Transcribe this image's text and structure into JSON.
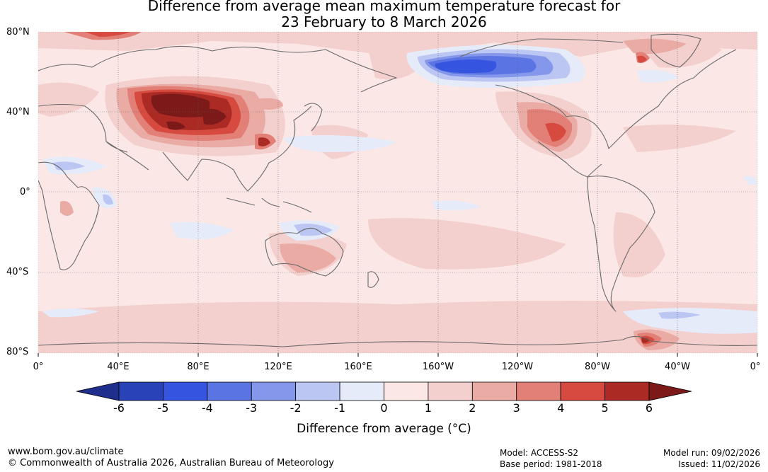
{
  "title": {
    "line1": "Difference from average mean maximum temperature forecast for",
    "line2": "23 February to 8 March 2026"
  },
  "map": {
    "lat_labels": [
      "80°N",
      "40°N",
      "0°",
      "40°S",
      "80°S"
    ],
    "lon_labels": [
      "0°",
      "40°E",
      "80°E",
      "120°E",
      "160°E",
      "160°W",
      "120°W",
      "80°W",
      "40°W",
      "0°"
    ],
    "anomaly_regions": [
      {
        "region": "Central Asia / Mongolia",
        "anomaly_c": 6
      },
      {
        "region": "Alaska / NE Pacific",
        "anomaly_c": -4
      },
      {
        "region": "Southern United States / Mexico",
        "anomaly_c": 4
      },
      {
        "region": "Eastern China",
        "anomaly_c": 4
      },
      {
        "region": "Arctic north of Europe",
        "anomaly_c": 4
      },
      {
        "region": "Greenland",
        "anomaly_c": 4
      },
      {
        "region": "Antarctic Peninsula",
        "anomaly_c": 5
      },
      {
        "region": "Northern Australia",
        "anomaly_c": -2
      },
      {
        "region": "Southern Australia",
        "anomaly_c": 2
      }
    ]
  },
  "colorbar": {
    "ticks": [
      "-6",
      "-5",
      "-4",
      "-3",
      "-2",
      "-1",
      "0",
      "1",
      "2",
      "3",
      "4",
      "5",
      "6"
    ],
    "colors": [
      "#1f2e8c",
      "#2a42b8",
      "#3554e0",
      "#5b74e3",
      "#8597ea",
      "#bcc6f2",
      "#e6ebfa",
      "#fbe8e6",
      "#f3d0cd",
      "#eaaba5",
      "#e28078",
      "#d64a3f",
      "#ab2a24",
      "#7b1a18"
    ],
    "label": "Difference from average (°C)"
  },
  "footer": {
    "website": "www.bom.gov.au/climate",
    "copyright": "© Commonwealth of Australia 2026, Australian Bureau of Meteorology",
    "model": "Model: ACCESS-S2",
    "base_period": "Base period: 1981-2018",
    "model_run": "Model run: 09/02/2026",
    "issued": "Issued: 11/02/2026"
  }
}
